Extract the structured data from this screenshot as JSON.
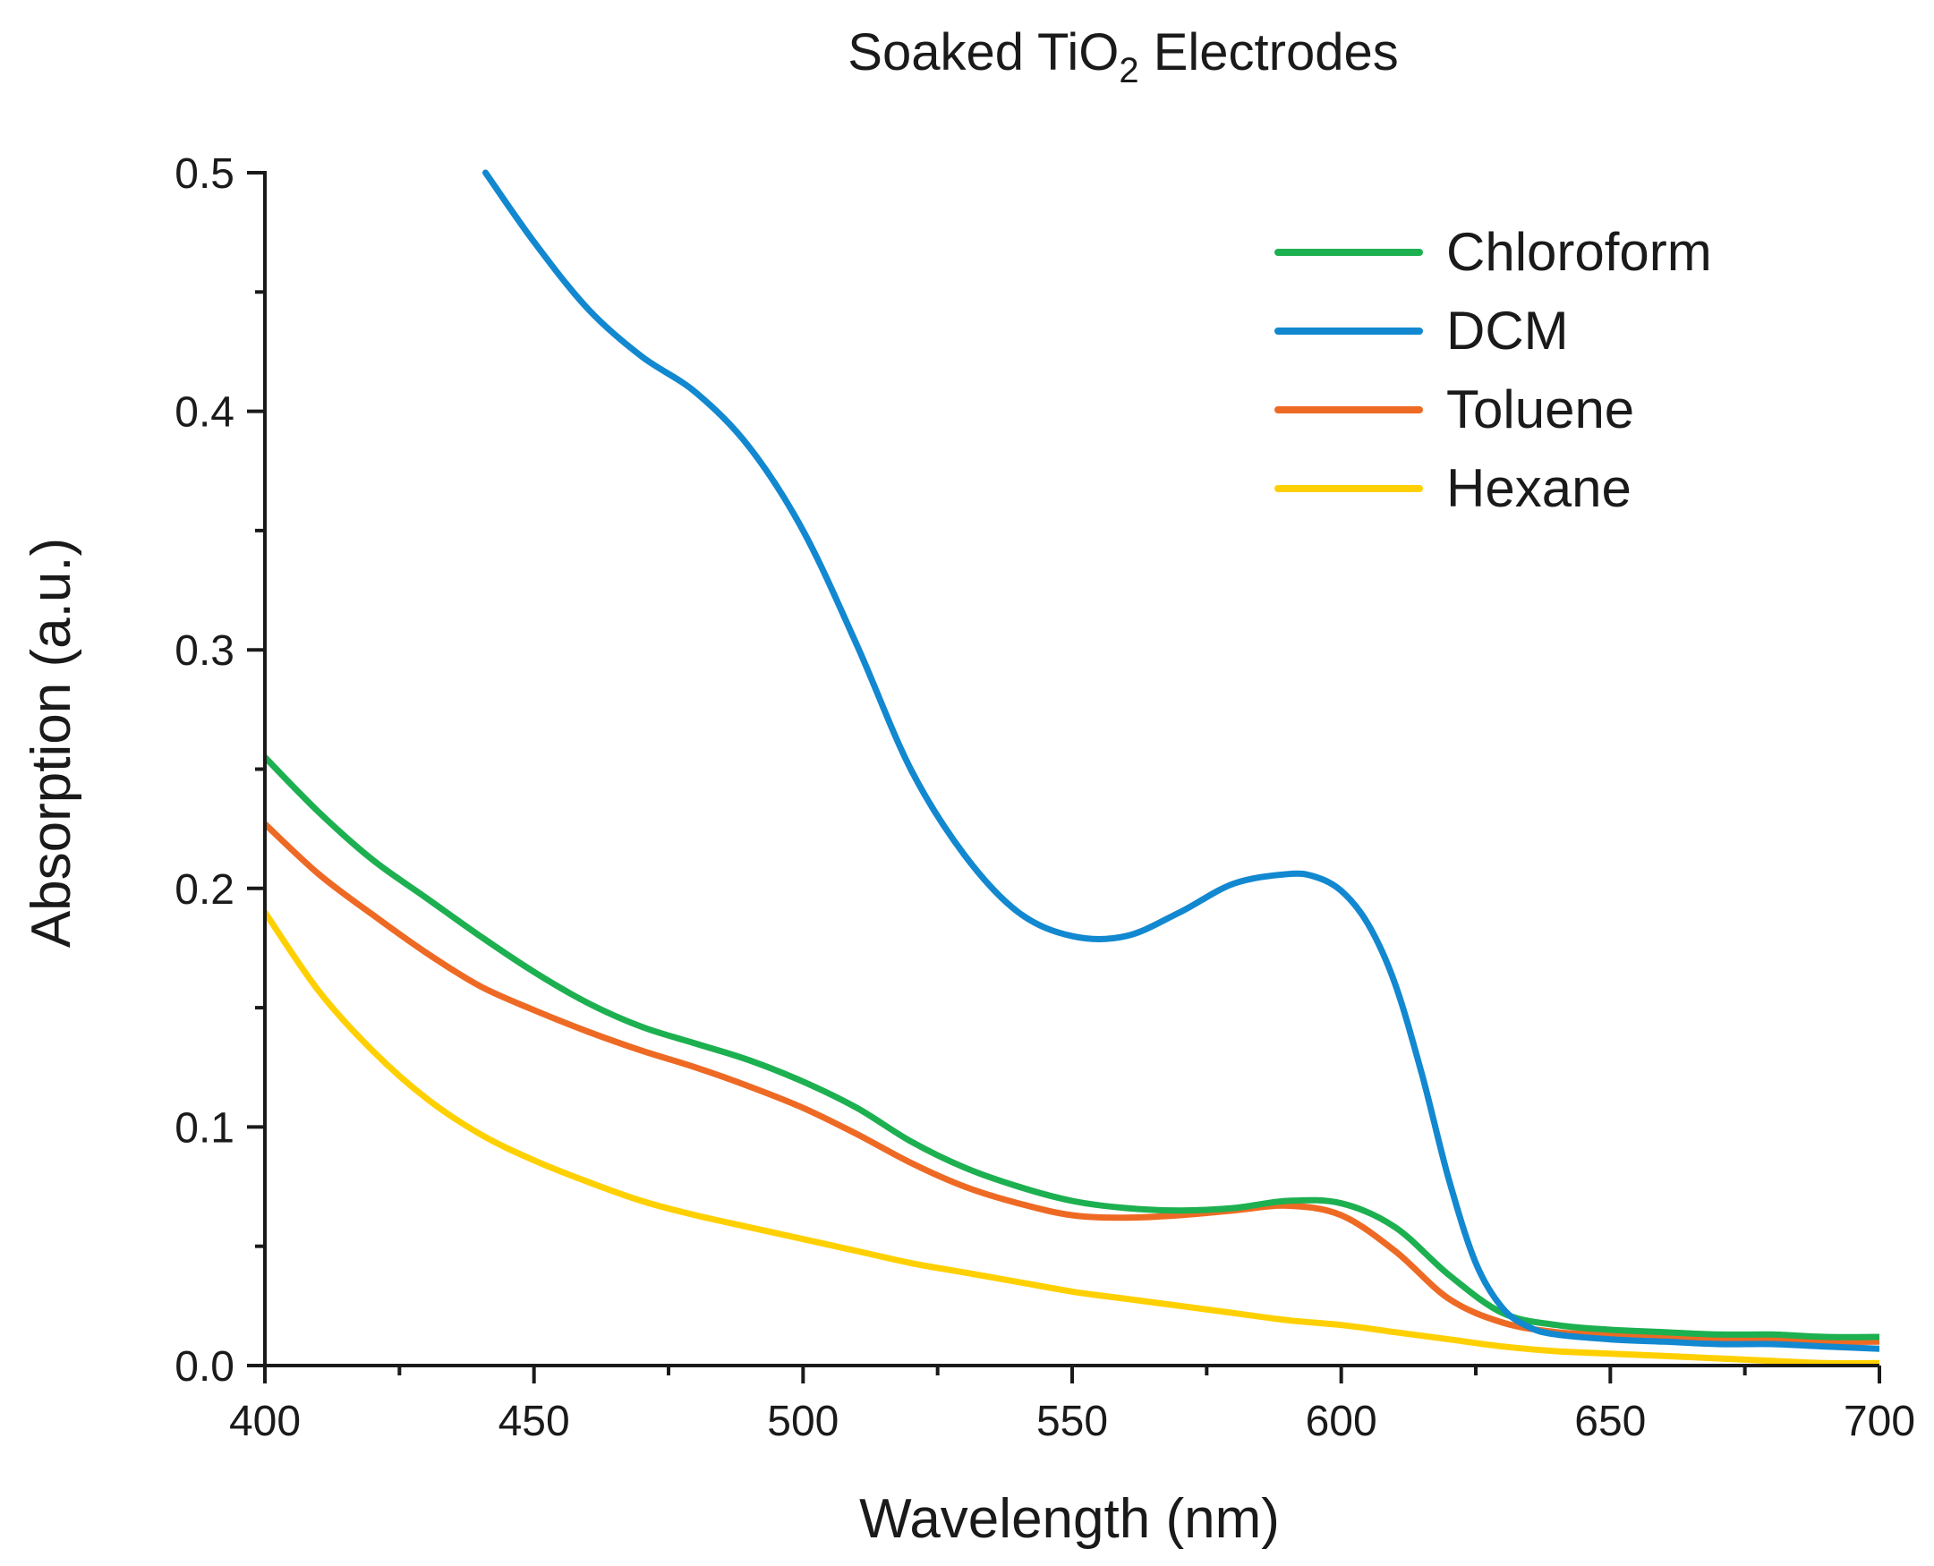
{
  "chart_data": {
    "type": "line",
    "title": "Soaked TiO2 Electrodes",
    "title_parts": {
      "prefix": "Soaked TiO",
      "subscript": "2",
      "suffix": " Electrodes"
    },
    "xlabel": "Wavelength (nm)",
    "ylabel": "Absorption (a.u.)",
    "xlim": [
      400,
      700
    ],
    "ylim": [
      0,
      0.5
    ],
    "x_ticks": [
      400,
      450,
      500,
      550,
      600,
      650,
      700
    ],
    "x_tick_labels": [
      "400",
      "450",
      "500",
      "550",
      "600",
      "650",
      "700"
    ],
    "y_ticks": [
      0,
      0.1,
      0.2,
      0.3,
      0.4,
      0.5
    ],
    "y_tick_labels": [
      "0.0",
      "0.1",
      "0.2",
      "0.3",
      "0.4",
      "0.5"
    ],
    "legend_position": "top-right",
    "grid": false,
    "series": [
      {
        "name": "Chloroform",
        "color": "#1db050",
        "x": [
          400,
          410,
          420,
          430,
          440,
          450,
          460,
          470,
          480,
          490,
          500,
          510,
          520,
          530,
          540,
          550,
          560,
          570,
          580,
          590,
          600,
          610,
          620,
          630,
          640,
          650,
          660,
          670,
          680,
          690,
          700
        ],
        "y": [
          0.255,
          0.232,
          0.212,
          0.196,
          0.18,
          0.165,
          0.152,
          0.142,
          0.135,
          0.128,
          0.119,
          0.108,
          0.094,
          0.083,
          0.075,
          0.069,
          0.066,
          0.065,
          0.066,
          0.069,
          0.068,
          0.058,
          0.038,
          0.022,
          0.017,
          0.015,
          0.014,
          0.013,
          0.013,
          0.012,
          0.012
        ]
      },
      {
        "name": "DCM",
        "color": "#1288d0",
        "x": [
          441,
          450,
          460,
          470,
          480,
          490,
          500,
          510,
          520,
          530,
          540,
          550,
          560,
          570,
          580,
          590,
          595,
          600,
          605,
          610,
          615,
          620,
          625,
          630,
          635,
          640,
          650,
          660,
          670,
          680,
          690,
          700
        ],
        "y": [
          0.5,
          0.471,
          0.443,
          0.423,
          0.408,
          0.385,
          0.35,
          0.302,
          0.25,
          0.214,
          0.19,
          0.18,
          0.18,
          0.19,
          0.202,
          0.206,
          0.205,
          0.199,
          0.185,
          0.16,
          0.122,
          0.078,
          0.043,
          0.024,
          0.016,
          0.013,
          0.011,
          0.01,
          0.009,
          0.009,
          0.008,
          0.007
        ]
      },
      {
        "name": "Toluene",
        "color": "#ee6a24",
        "x": [
          400,
          410,
          420,
          430,
          440,
          450,
          460,
          470,
          480,
          490,
          500,
          510,
          520,
          530,
          540,
          550,
          560,
          570,
          580,
          590,
          600,
          610,
          620,
          630,
          640,
          650,
          660,
          670,
          680,
          690,
          700
        ],
        "y": [
          0.227,
          0.206,
          0.189,
          0.173,
          0.159,
          0.149,
          0.14,
          0.132,
          0.125,
          0.117,
          0.108,
          0.097,
          0.085,
          0.075,
          0.068,
          0.063,
          0.062,
          0.063,
          0.065,
          0.067,
          0.063,
          0.048,
          0.028,
          0.018,
          0.014,
          0.013,
          0.012,
          0.011,
          0.011,
          0.01,
          0.01
        ]
      },
      {
        "name": "Hexane",
        "color": "#ffd000",
        "x": [
          400,
          410,
          420,
          430,
          440,
          450,
          460,
          470,
          480,
          490,
          500,
          510,
          520,
          530,
          540,
          550,
          560,
          570,
          580,
          590,
          600,
          610,
          620,
          630,
          640,
          650,
          660,
          670,
          680,
          690,
          700
        ],
        "y": [
          0.19,
          0.157,
          0.132,
          0.112,
          0.097,
          0.086,
          0.077,
          0.069,
          0.063,
          0.058,
          0.053,
          0.048,
          0.043,
          0.039,
          0.035,
          0.031,
          0.028,
          0.025,
          0.022,
          0.019,
          0.017,
          0.014,
          0.011,
          0.008,
          0.006,
          0.005,
          0.004,
          0.003,
          0.002,
          0.001,
          0.001
        ]
      }
    ]
  }
}
